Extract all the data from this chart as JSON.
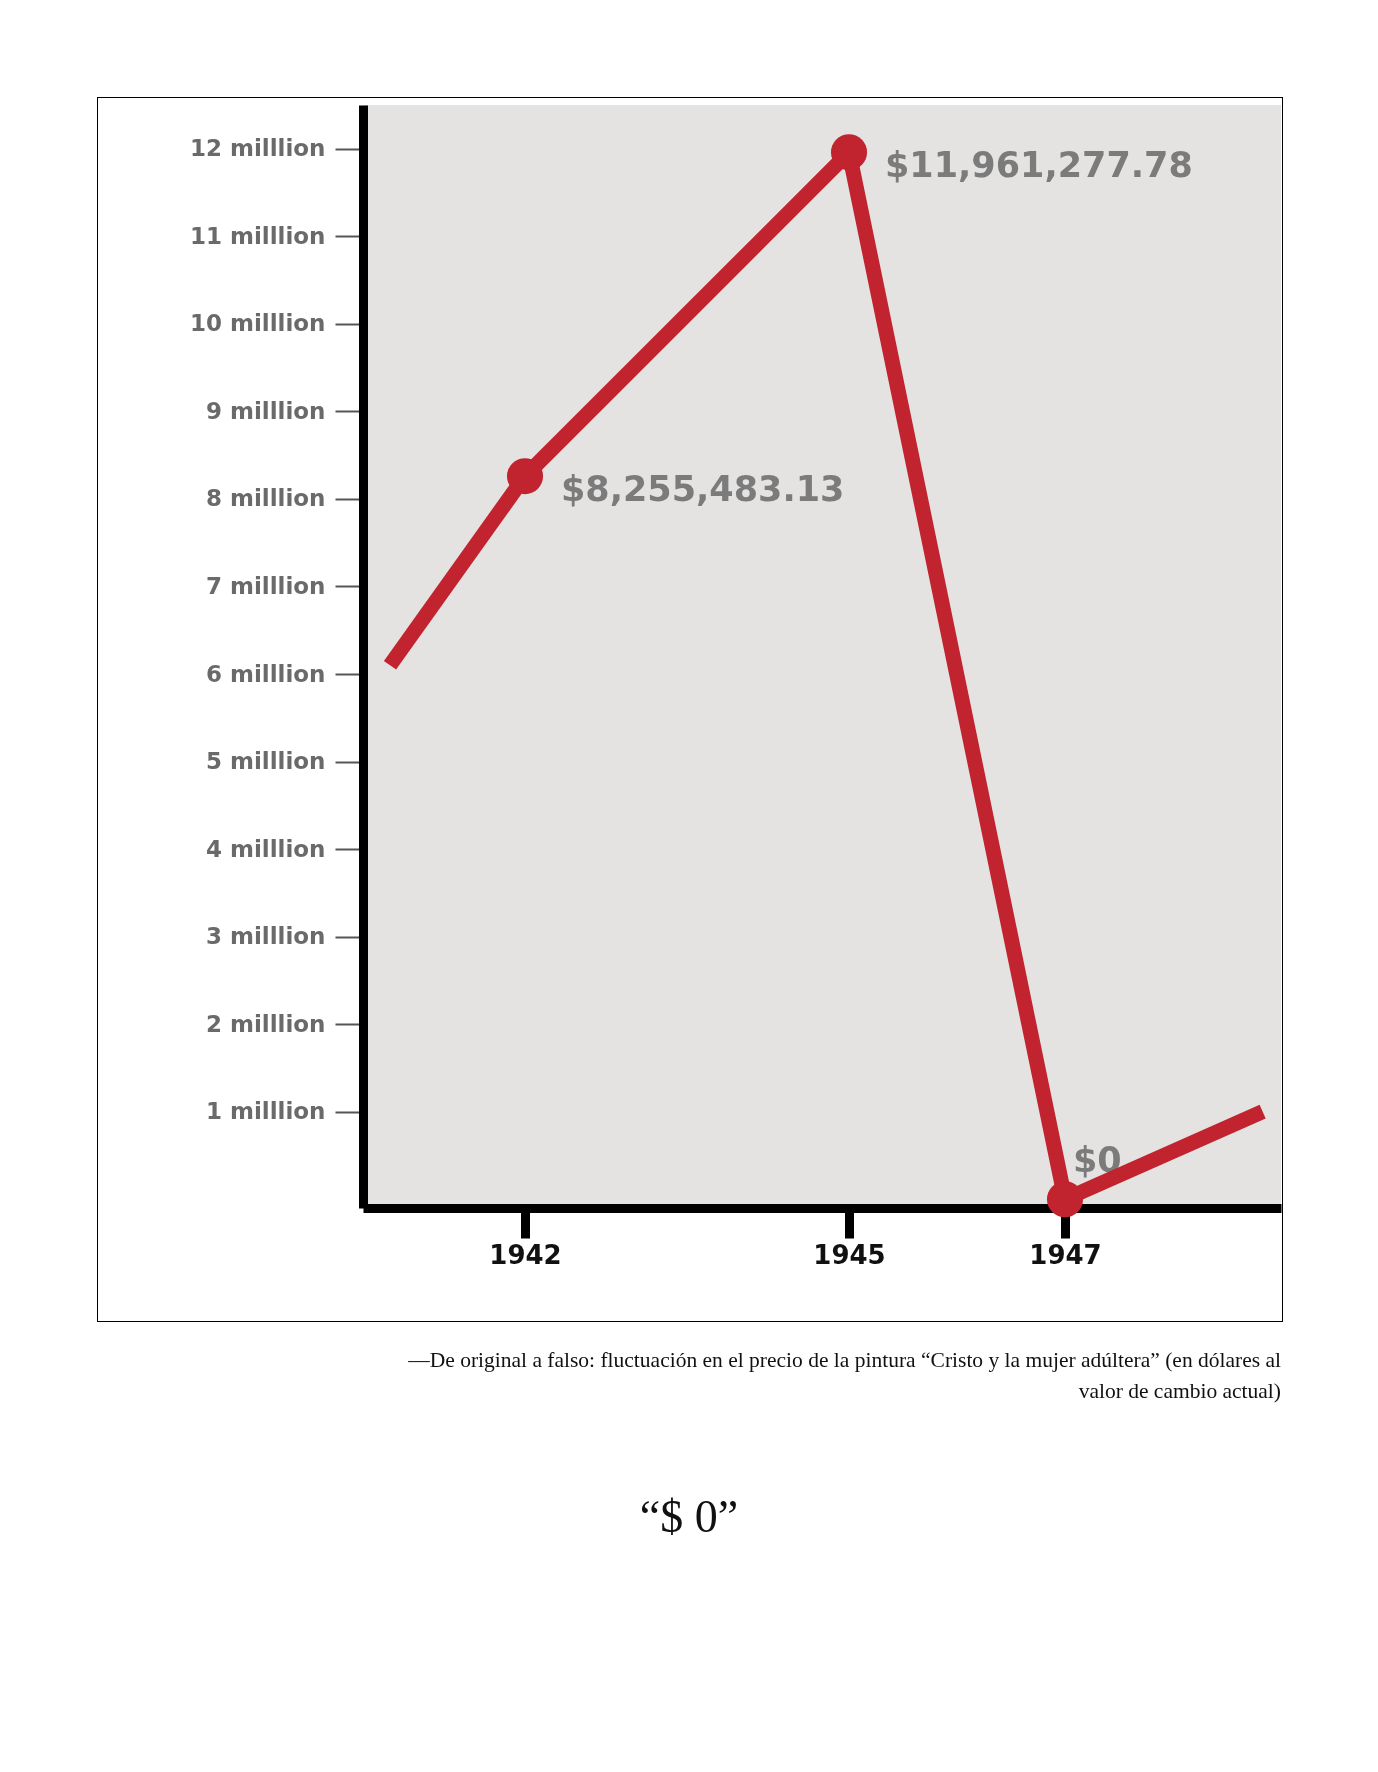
{
  "chart_data": {
    "type": "line",
    "x": [
      1940.75,
      1942,
      1945,
      1947,
      1948.83
    ],
    "xlim": [
      1940.5,
      1949
    ],
    "xticks": [
      1942,
      1945,
      1947
    ],
    "ylim": [
      -0.1,
      12.5
    ],
    "yticks": [
      {
        "value": 1,
        "label": "1 milllion"
      },
      {
        "value": 2,
        "label": "2 milllion"
      },
      {
        "value": 3,
        "label": "3 milllion"
      },
      {
        "value": 4,
        "label": "4 milllion"
      },
      {
        "value": 5,
        "label": "5 milllion"
      },
      {
        "value": 6,
        "label": "6 milllion"
      },
      {
        "value": 7,
        "label": "7 milllion"
      },
      {
        "value": 8,
        "label": "8 milllion"
      },
      {
        "value": 9,
        "label": "9 milllion"
      },
      {
        "value": 10,
        "label": "10 milllion"
      },
      {
        "value": 11,
        "label": "11 milllion"
      },
      {
        "value": 12,
        "label": "12 milllion"
      }
    ],
    "series": [
      {
        "type": "line",
        "color": "#c1232f",
        "marker": "none",
        "values": [
          6.1,
          8.26,
          11.96,
          0,
          1.0
        ]
      },
      {
        "type": "scatter",
        "color": "#c1232f",
        "marker": "circle",
        "x": [
          1942,
          1945,
          1947
        ],
        "values": [
          8.26,
          11.96,
          0
        ]
      }
    ],
    "grid": false,
    "annotations": [
      {
        "text": "$8,255,483.13",
        "x": 1942,
        "y": 8.26
      },
      {
        "text": "$11,961,277.78",
        "x": 1945,
        "y": 11.96
      },
      {
        "text": "$0",
        "x": 1947,
        "y": 0
      },
      "—De original a falso: fluctuación en el precio de la pintura “Cristo y la mujer adúltera” (en dólares al valor de cambio actual)",
      "“$ 0”"
    ]
  }
}
